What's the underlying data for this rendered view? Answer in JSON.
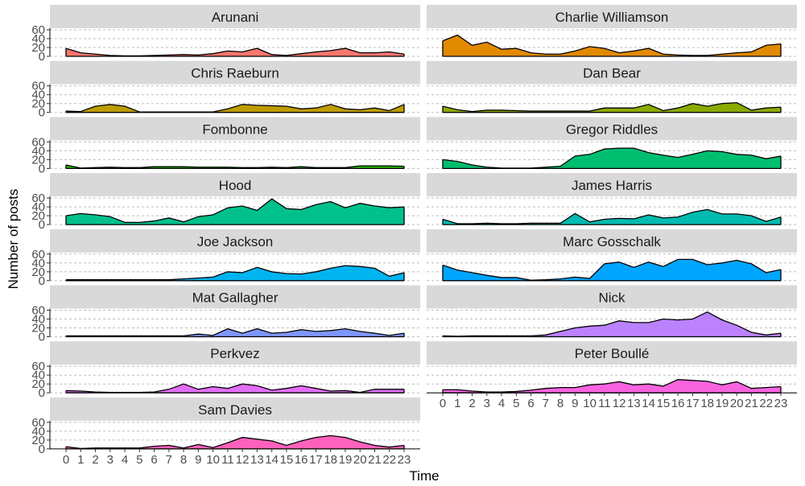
{
  "chart_data": {
    "type": "area",
    "facet_layout": "2 columns, small multiples (facet_wrap)",
    "xlabel": "Time",
    "ylabel": "Number of posts",
    "xlim": [
      0,
      23
    ],
    "ylim": [
      0,
      60
    ],
    "x": [
      0,
      1,
      2,
      3,
      4,
      5,
      6,
      7,
      8,
      9,
      10,
      11,
      12,
      13,
      14,
      15,
      16,
      17,
      18,
      19,
      20,
      21,
      22,
      23
    ],
    "x_tick_labels": [
      "0",
      "1",
      "2",
      "3",
      "4",
      "5",
      "6",
      "7",
      "8",
      "9",
      "10",
      "11",
      "12",
      "13",
      "14",
      "15",
      "16",
      "17",
      "18",
      "19",
      "20",
      "21",
      "22",
      "23"
    ],
    "y_ticks": [
      0,
      20,
      40,
      60
    ],
    "y_tick_labels": [
      "0",
      "20",
      "40",
      "60"
    ],
    "grid": "horizontal dashed major gridlines",
    "legend": "none",
    "series": [
      {
        "name": "Arunani",
        "color": "#F8766D",
        "values": [
          18,
          8,
          5,
          2,
          1,
          1,
          2,
          3,
          4,
          3,
          6,
          12,
          10,
          18,
          4,
          2,
          6,
          10,
          13,
          18,
          8,
          8,
          10,
          5
        ]
      },
      {
        "name": "Charlie Williamson",
        "color": "#E18A00",
        "values": [
          35,
          48,
          25,
          32,
          16,
          18,
          8,
          5,
          5,
          12,
          22,
          18,
          8,
          12,
          18,
          5,
          3,
          2,
          2,
          5,
          8,
          10,
          25,
          28
        ]
      },
      {
        "name": "Chris Raeburn",
        "color": "#BE9C00",
        "values": [
          3,
          2,
          14,
          18,
          14,
          1,
          1,
          1,
          1,
          1,
          1,
          8,
          18,
          16,
          15,
          14,
          8,
          10,
          18,
          8,
          6,
          10,
          4,
          18
        ]
      },
      {
        "name": "Dan Bear",
        "color": "#8CAB00",
        "values": [
          14,
          6,
          2,
          5,
          5,
          4,
          3,
          3,
          3,
          3,
          3,
          10,
          10,
          10,
          18,
          4,
          10,
          20,
          14,
          20,
          22,
          5,
          10,
          12
        ]
      },
      {
        "name": "Fombonne",
        "color": "#24B700",
        "values": [
          8,
          1,
          2,
          3,
          2,
          2,
          4,
          4,
          4,
          3,
          3,
          3,
          2,
          2,
          3,
          2,
          4,
          2,
          2,
          2,
          6,
          6,
          6,
          5
        ]
      },
      {
        "name": "Gregor Riddles",
        "color": "#00BE70",
        "values": [
          20,
          16,
          8,
          3,
          1,
          1,
          1,
          3,
          5,
          28,
          32,
          44,
          46,
          46,
          36,
          30,
          25,
          32,
          40,
          38,
          32,
          30,
          22,
          28
        ]
      },
      {
        "name": "Hood",
        "color": "#00C08B",
        "values": [
          20,
          25,
          22,
          18,
          5,
          5,
          8,
          15,
          6,
          18,
          22,
          38,
          42,
          32,
          58,
          36,
          34,
          45,
          52,
          38,
          48,
          42,
          38,
          40
        ]
      },
      {
        "name": "James Harris",
        "color": "#00BBB1",
        "values": [
          12,
          2,
          2,
          3,
          2,
          2,
          3,
          3,
          3,
          25,
          6,
          12,
          14,
          13,
          22,
          15,
          17,
          28,
          34,
          24,
          24,
          20,
          7,
          17
        ]
      },
      {
        "name": "Joe Jackson",
        "color": "#00B4EF",
        "values": [
          2,
          2,
          2,
          2,
          2,
          2,
          2,
          2,
          4,
          6,
          8,
          20,
          18,
          30,
          20,
          16,
          15,
          20,
          28,
          34,
          32,
          28,
          10,
          18
        ]
      },
      {
        "name": "Marc Gosschalk",
        "color": "#00A5FF",
        "values": [
          35,
          24,
          18,
          12,
          7,
          7,
          1,
          2,
          4,
          8,
          5,
          38,
          42,
          30,
          42,
          32,
          48,
          48,
          36,
          40,
          46,
          38,
          18,
          25
        ]
      },
      {
        "name": "Mat Gallagher",
        "color": "#7F96FF",
        "values": [
          2,
          2,
          2,
          2,
          2,
          2,
          2,
          2,
          2,
          6,
          3,
          18,
          8,
          18,
          8,
          10,
          16,
          12,
          14,
          18,
          12,
          8,
          3,
          8
        ]
      },
      {
        "name": "Nick",
        "color": "#BC81FF",
        "values": [
          2,
          1,
          2,
          2,
          2,
          2,
          2,
          4,
          12,
          20,
          24,
          26,
          36,
          32,
          32,
          40,
          38,
          40,
          56,
          38,
          26,
          10,
          4,
          8
        ]
      },
      {
        "name": "Perkvez",
        "color": "#E26EF7",
        "values": [
          5,
          4,
          2,
          1,
          1,
          1,
          2,
          8,
          20,
          8,
          14,
          10,
          20,
          16,
          6,
          10,
          16,
          10,
          4,
          5,
          1,
          8,
          8,
          8
        ]
      },
      {
        "name": "Peter Boullé",
        "color": "#F863DF",
        "values": [
          7,
          7,
          4,
          2,
          2,
          3,
          6,
          10,
          12,
          12,
          18,
          20,
          25,
          18,
          20,
          15,
          30,
          28,
          26,
          18,
          25,
          10,
          12,
          14
        ]
      },
      {
        "name": "Sam Davies",
        "color": "#FF62BC",
        "values": [
          5,
          1,
          2,
          2,
          2,
          2,
          6,
          8,
          2,
          10,
          3,
          14,
          26,
          22,
          18,
          8,
          18,
          26,
          30,
          26,
          16,
          8,
          4,
          8
        ]
      }
    ]
  }
}
